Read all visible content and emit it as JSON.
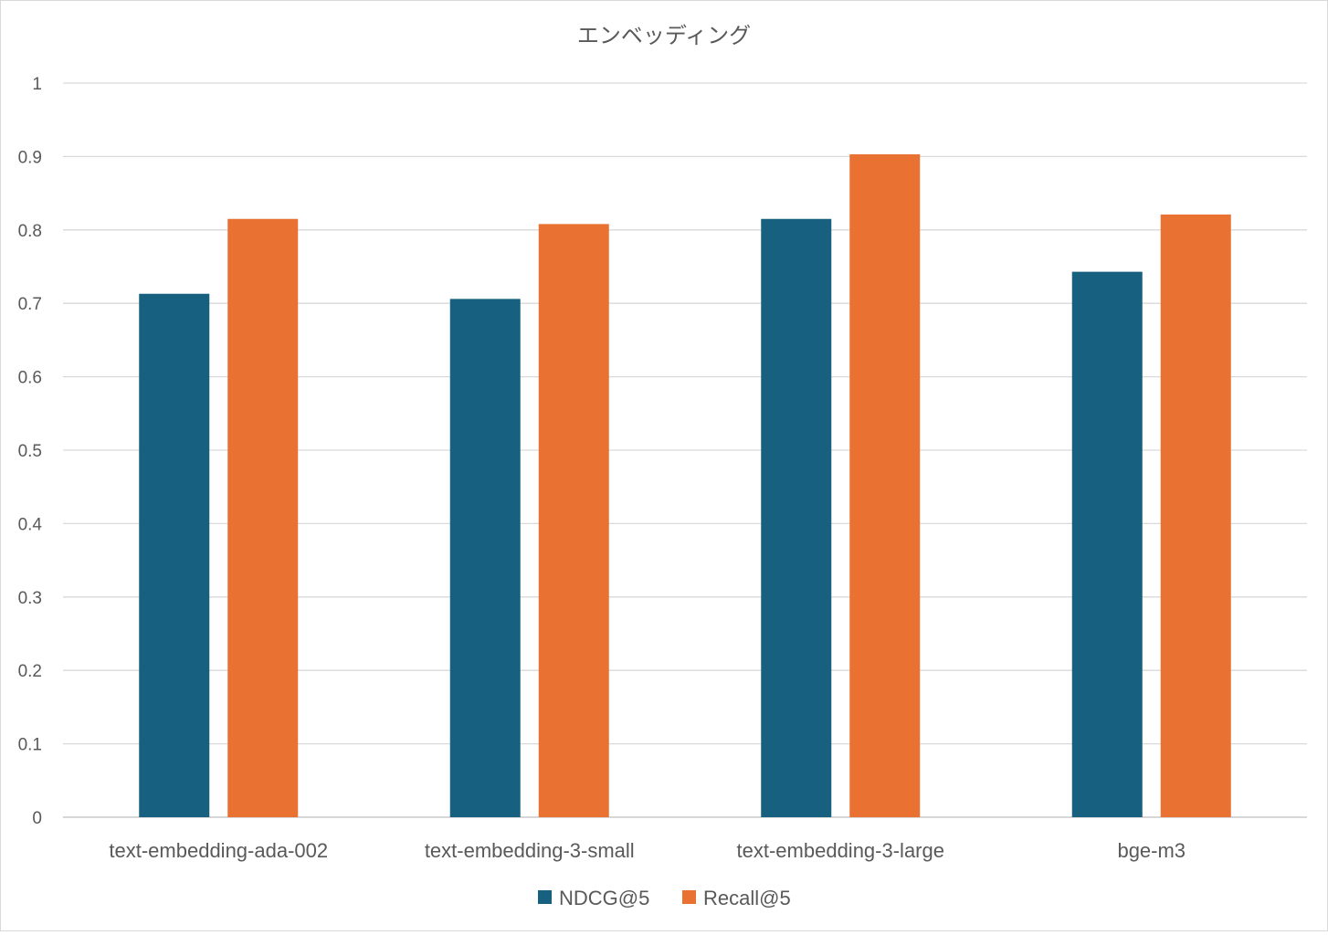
{
  "chart_data": {
    "type": "bar",
    "title": "エンベッディング",
    "xlabel": "",
    "ylabel": "",
    "categories": [
      "text-embedding-ada-002",
      "text-embedding-3-small",
      "text-embedding-3-large",
      "bge-m3"
    ],
    "series": [
      {
        "name": "NDCG@5",
        "color": "#17607f",
        "values": [
          0.713,
          0.706,
          0.815,
          0.743
        ]
      },
      {
        "name": "Recall@5",
        "color": "#e97132",
        "values": [
          0.815,
          0.808,
          0.903,
          0.821
        ]
      }
    ],
    "ylim": [
      0,
      1
    ],
    "yticks": [
      0,
      0.1,
      0.2,
      0.3,
      0.4,
      0.5,
      0.6,
      0.7,
      0.8,
      0.9,
      1
    ],
    "ytick_labels": [
      "0",
      "0.1",
      "0.2",
      "0.3",
      "0.4",
      "0.5",
      "0.6",
      "0.7",
      "0.8",
      "0.9",
      "1"
    ],
    "grid": true,
    "legend_position": "bottom"
  }
}
